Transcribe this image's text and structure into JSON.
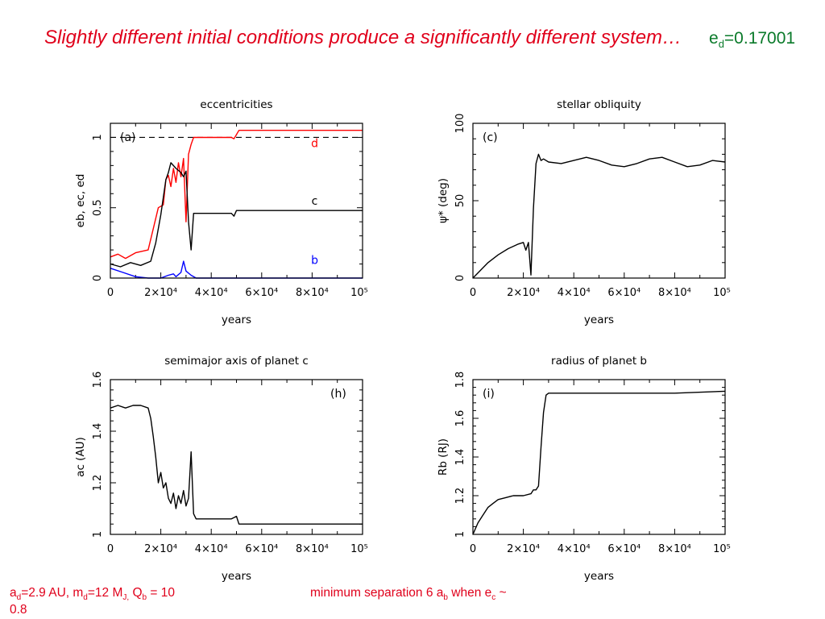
{
  "slide": {
    "title": "Slightly different initial conditions produce a significantly different system…",
    "ed_label": {
      "prefix": "e",
      "sub": "d",
      "value": "=0.17001"
    },
    "footer_left": [
      "a",
      "d",
      "=2.9 AU,  m",
      "d",
      "=12 M",
      "J,",
      "  Q",
      "b",
      " = 10",
      "0.8"
    ],
    "footer_right": [
      "minimum separation 6 a",
      "b",
      " when e",
      "c",
      " ~"
    ]
  },
  "colors": {
    "title": "#e0001b",
    "ed": "#0a7a2a",
    "d_series": "#ff0000",
    "c_series": "#000000",
    "b_series": "#0000ff"
  },
  "chart_data": [
    {
      "id": "a",
      "type": "line",
      "title": "eccentricities",
      "panel_label": "(a)",
      "xlabel": "years",
      "ylabel": "eb, ec, ed",
      "xlim": [
        0,
        100000
      ],
      "ylim": [
        0,
        1.1
      ],
      "xticks": [
        "0",
        "2×10⁴",
        "4×10⁴",
        "6×10⁴",
        "8×10⁴",
        "10⁵"
      ],
      "yticks": [
        "0",
        "0.5",
        "1"
      ],
      "ytick_values": [
        0,
        0.5,
        1
      ],
      "reference_line": {
        "y": 1,
        "style": "dashed"
      },
      "series": [
        {
          "name": "d",
          "color": "#ff0000",
          "x": [
            0,
            3000,
            6000,
            10000,
            15000,
            17000,
            19000,
            21000,
            22000,
            23000,
            24000,
            25000,
            26000,
            27000,
            28000,
            29000,
            30000,
            31000,
            32000,
            33000,
            34000,
            35000,
            40000,
            48000,
            49000,
            50000,
            51000,
            60000,
            100000
          ],
          "y": [
            0.15,
            0.17,
            0.14,
            0.18,
            0.2,
            0.35,
            0.5,
            0.52,
            0.7,
            0.73,
            0.65,
            0.78,
            0.68,
            0.82,
            0.72,
            0.85,
            0.4,
            0.88,
            0.95,
            1.0,
            1.0,
            1.0,
            1.0,
            1.0,
            0.99,
            1.02,
            1.05,
            1.05,
            1.05
          ]
        },
        {
          "name": "c",
          "color": "#000000",
          "x": [
            0,
            4000,
            8000,
            12000,
            16000,
            18000,
            20000,
            22000,
            23000,
            24000,
            26000,
            28000,
            29000,
            30000,
            31000,
            32000,
            33000,
            35000,
            40000,
            48000,
            49000,
            50000,
            51000,
            60000,
            100000
          ],
          "y": [
            0.1,
            0.08,
            0.11,
            0.09,
            0.12,
            0.25,
            0.45,
            0.7,
            0.75,
            0.82,
            0.78,
            0.75,
            0.72,
            0.76,
            0.4,
            0.2,
            0.46,
            0.46,
            0.46,
            0.46,
            0.44,
            0.48,
            0.48,
            0.48,
            0.48
          ]
        },
        {
          "name": "b",
          "color": "#0000ff",
          "x": [
            0,
            5000,
            10000,
            15000,
            20000,
            23000,
            25000,
            26000,
            28000,
            29000,
            30000,
            32000,
            34000,
            40000,
            100000
          ],
          "y": [
            0.07,
            0.04,
            0.01,
            0.0,
            0.0,
            0.02,
            0.03,
            0.01,
            0.04,
            0.12,
            0.05,
            0.02,
            0.0,
            0.0,
            0.0
          ]
        }
      ],
      "series_labels": [
        {
          "text": "d",
          "x": 81000,
          "y": 0.93,
          "color": "#ff0000"
        },
        {
          "text": "c",
          "x": 81000,
          "y": 0.52,
          "color": "#000000"
        },
        {
          "text": "b",
          "x": 81000,
          "y": 0.1,
          "color": "#0000ff"
        }
      ]
    },
    {
      "id": "c",
      "type": "line",
      "title": "stellar obliquity",
      "panel_label": "(c)",
      "xlabel": "years",
      "ylabel": "ψ* (deg)",
      "xlim": [
        0,
        100000
      ],
      "ylim": [
        0,
        100
      ],
      "xticks": [
        "0",
        "2×10⁴",
        "4×10⁴",
        "6×10⁴",
        "8×10⁴",
        "10⁵"
      ],
      "yticks": [
        "0",
        "50",
        "100"
      ],
      "ytick_values": [
        0,
        50,
        100
      ],
      "series": [
        {
          "color": "#000000",
          "x": [
            0,
            3000,
            6000,
            10000,
            14000,
            18000,
            20000,
            21000,
            22000,
            23000,
            24000,
            25000,
            26000,
            27000,
            28000,
            30000,
            35000,
            40000,
            45000,
            50000,
            55000,
            60000,
            65000,
            70000,
            75000,
            80000,
            85000,
            90000,
            95000,
            100000
          ],
          "y": [
            0,
            5,
            10,
            15,
            19,
            22,
            23,
            18,
            23,
            2,
            45,
            74,
            80,
            76,
            77,
            75,
            74,
            76,
            78,
            76,
            73,
            72,
            74,
            77,
            78,
            75,
            72,
            73,
            76,
            75
          ]
        }
      ]
    },
    {
      "id": "h",
      "type": "line",
      "title": "semimajor axis of planet c",
      "panel_label": "(h)",
      "xlabel": "years",
      "ylabel": "ac (AU)",
      "xlim": [
        0,
        100000
      ],
      "ylim": [
        1,
        1.6
      ],
      "xticks": [
        "0",
        "2×10⁴",
        "4×10⁴",
        "6×10⁴",
        "8×10⁴",
        "10⁵"
      ],
      "yticks": [
        "1",
        "1.2",
        "1.4",
        "1.6"
      ],
      "ytick_values": [
        1,
        1.2,
        1.4,
        1.6
      ],
      "series": [
        {
          "color": "#000000",
          "x": [
            0,
            3000,
            6000,
            9000,
            12000,
            15000,
            16000,
            17000,
            18000,
            19000,
            20000,
            21000,
            22000,
            23000,
            24000,
            25000,
            26000,
            27000,
            28000,
            29000,
            30000,
            31000,
            32000,
            33000,
            34000,
            35000,
            40000,
            48000,
            50000,
            51000,
            60000,
            100000
          ],
          "y": [
            1.49,
            1.5,
            1.49,
            1.5,
            1.5,
            1.49,
            1.45,
            1.38,
            1.3,
            1.2,
            1.24,
            1.18,
            1.2,
            1.14,
            1.12,
            1.16,
            1.1,
            1.15,
            1.12,
            1.17,
            1.11,
            1.14,
            1.32,
            1.08,
            1.06,
            1.06,
            1.06,
            1.06,
            1.07,
            1.04,
            1.04,
            1.04
          ]
        }
      ]
    },
    {
      "id": "i",
      "type": "line",
      "title": "radius of planet b",
      "panel_label": "(i)",
      "xlabel": "years",
      "ylabel": "Rb (RJ)",
      "xlim": [
        0,
        100000
      ],
      "ylim": [
        1,
        1.8
      ],
      "xticks": [
        "0",
        "2×10⁴",
        "4×10⁴",
        "6×10⁴",
        "8×10⁴",
        "10⁵"
      ],
      "yticks": [
        "1",
        "1.2",
        "1.4",
        "1.6",
        "1.8"
      ],
      "ytick_values": [
        1,
        1.2,
        1.4,
        1.6,
        1.8
      ],
      "series": [
        {
          "color": "#000000",
          "x": [
            0,
            2000,
            4000,
            6000,
            8000,
            10000,
            13000,
            16000,
            20000,
            23000,
            24000,
            25000,
            26000,
            27000,
            28000,
            29000,
            30000,
            32000,
            40000,
            60000,
            80000,
            100000
          ],
          "y": [
            1.0,
            1.06,
            1.1,
            1.14,
            1.16,
            1.18,
            1.19,
            1.2,
            1.2,
            1.21,
            1.23,
            1.23,
            1.25,
            1.45,
            1.63,
            1.72,
            1.73,
            1.73,
            1.73,
            1.73,
            1.73,
            1.74
          ]
        }
      ]
    }
  ]
}
